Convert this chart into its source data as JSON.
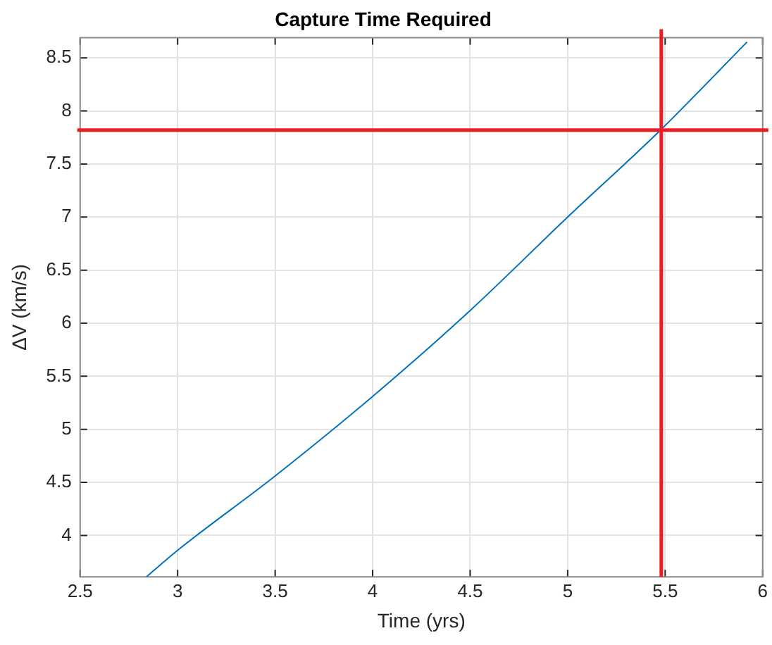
{
  "chart_data": {
    "type": "line",
    "title": "Capture Time Required",
    "xlabel": "Time (yrs)",
    "ylabel": "ΔV (km/s)",
    "x": [
      2.84,
      3.0,
      3.5,
      4.0,
      4.5,
      5.0,
      5.476,
      5.92
    ],
    "series": [
      {
        "color": "#0072bd",
        "values": [
          3.61,
          3.86,
          4.56,
          5.31,
          6.12,
          7.0,
          7.82,
          8.65
        ]
      }
    ],
    "xlim": [
      2.5,
      6
    ],
    "xticks": [
      2.5,
      3,
      3.5,
      4,
      4.5,
      5,
      5.5,
      6
    ],
    "ylim": [
      3.61,
      8.69
    ],
    "yticks": [
      4,
      4.5,
      5,
      5.5,
      6,
      6.5,
      7,
      7.5,
      8,
      8.5
    ],
    "ref_lines": [
      {
        "axis": "x",
        "value": 5.48,
        "color": "#ee1c25"
      },
      {
        "axis": "y",
        "value": 7.82,
        "color": "#ee1c25"
      }
    ],
    "grid": true,
    "legend": false,
    "marker": "none",
    "line_style": "solid"
  }
}
